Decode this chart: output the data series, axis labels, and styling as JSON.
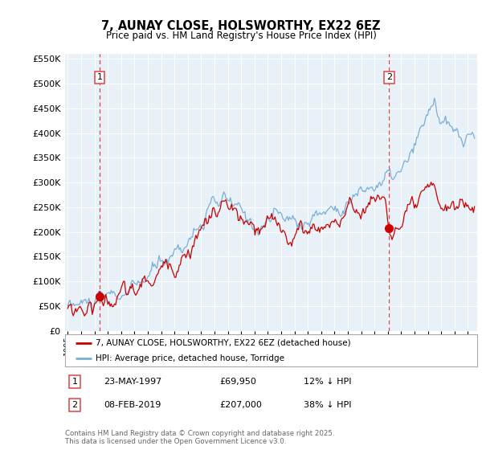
{
  "title": "7, AUNAY CLOSE, HOLSWORTHY, EX22 6EZ",
  "subtitle": "Price paid vs. HM Land Registry's House Price Index (HPI)",
  "legend_label_red": "7, AUNAY CLOSE, HOLSWORTHY, EX22 6EZ (detached house)",
  "legend_label_blue": "HPI: Average price, detached house, Torridge",
  "transaction1_num": "1",
  "transaction1_date": "23-MAY-1997",
  "transaction1_price": "£69,950",
  "transaction1_hpi": "12% ↓ HPI",
  "transaction2_num": "2",
  "transaction2_date": "08-FEB-2019",
  "transaction2_price": "£207,000",
  "transaction2_hpi": "38% ↓ HPI",
  "footnote": "Contains HM Land Registry data © Crown copyright and database right 2025.\nThis data is licensed under the Open Government Licence v3.0.",
  "red_color": "#cc0000",
  "blue_color": "#7aafd4",
  "vline_color": "#dd4444",
  "plot_bg": "#e8f0f8",
  "grid_color": "#ffffff",
  "ylim_min": 0,
  "ylim_max": 560000,
  "year_start": 1995,
  "year_end": 2025,
  "transaction1_year": 1997.38,
  "transaction2_year": 2019.1,
  "transaction1_value": 69950,
  "transaction2_value": 207000,
  "marker_size": 7
}
